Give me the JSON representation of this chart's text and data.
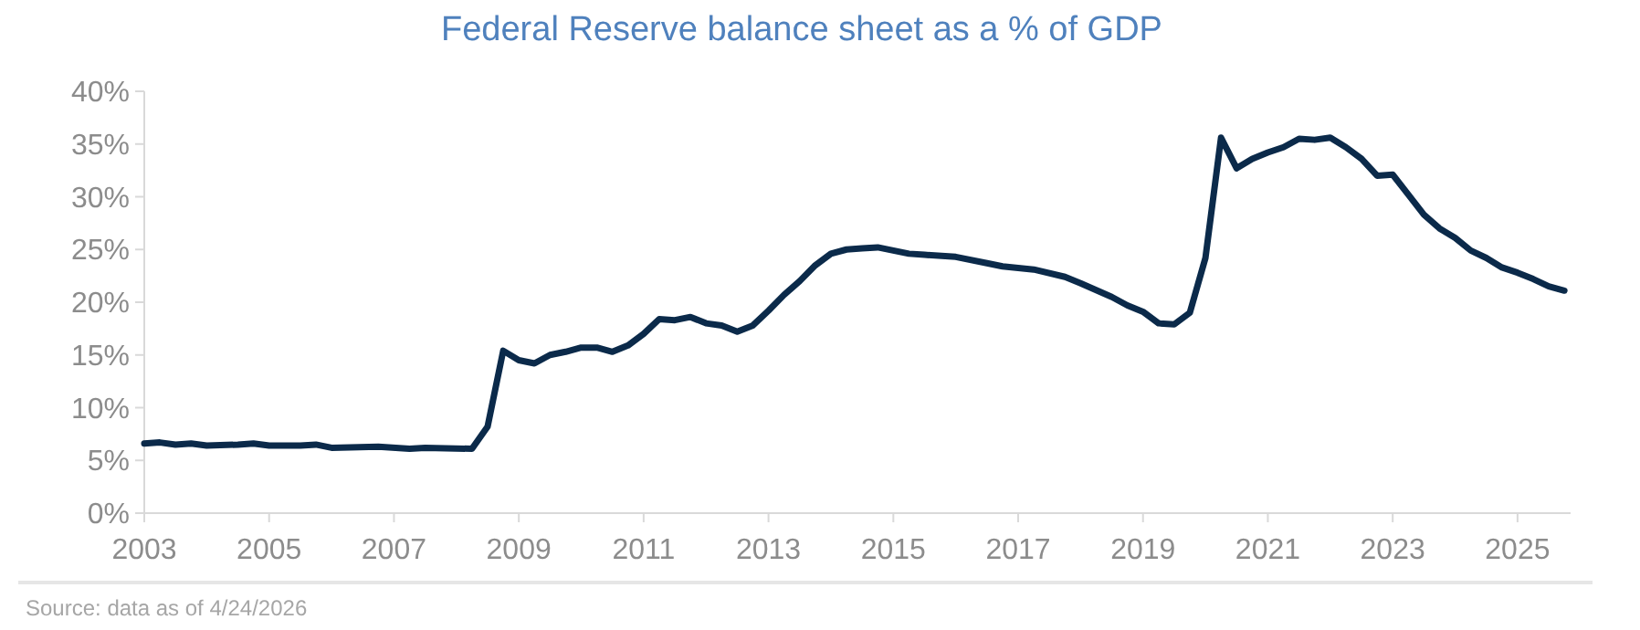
{
  "chart_data": {
    "type": "line",
    "title": "Federal Reserve balance sheet as a % of GDP",
    "annotations": [
      "Source: data as of 4/24/2026"
    ],
    "x": [
      2003,
      2003.25,
      2003.5,
      2003.75,
      2004,
      2004.5,
      2004.75,
      2005,
      2005.5,
      2005.75,
      2006,
      2006.75,
      2007.25,
      2007.5,
      2008.25,
      2008.5,
      2008.75,
      2009,
      2009.25,
      2009.5,
      2009.75,
      2010,
      2010.25,
      2010.5,
      2010.75,
      2011,
      2011.25,
      2011.5,
      2011.75,
      2012,
      2012.25,
      2012.5,
      2012.75,
      2013,
      2013.25,
      2013.5,
      2013.75,
      2014,
      2014.25,
      2014.5,
      2014.75,
      2015,
      2015.25,
      2015.5,
      2016,
      2016.5,
      2016.75,
      2017.25,
      2017.75,
      2018,
      2018.5,
      2018.75,
      2019,
      2019.25,
      2019.5,
      2019.75,
      2020,
      2020.25,
      2020.5,
      2020.75,
      2021,
      2021.25,
      2021.5,
      2021.75,
      2022,
      2022.25,
      2022.5,
      2022.75,
      2023,
      2023.25,
      2023.5,
      2023.75,
      2024,
      2024.25,
      2024.5,
      2024.75,
      2025,
      2025.25,
      2025.5,
      2025.75
    ],
    "series": [
      {
        "color": "#0b2a4a",
        "values": [
          6.6,
          6.7,
          6.5,
          6.6,
          6.4,
          6.5,
          6.6,
          6.4,
          6.4,
          6.5,
          6.2,
          6.3,
          6.1,
          6.2,
          6.1,
          8.2,
          15.4,
          14.5,
          14.2,
          15.0,
          15.3,
          15.7,
          15.7,
          15.3,
          15.9,
          17.0,
          18.4,
          18.3,
          18.6,
          18.0,
          17.8,
          17.2,
          17.8,
          19.2,
          20.7,
          22.0,
          23.5,
          24.6,
          25.0,
          25.1,
          25.2,
          24.9,
          24.6,
          24.5,
          24.3,
          23.7,
          23.4,
          23.1,
          22.4,
          21.8,
          20.5,
          19.7,
          19.1,
          18.0,
          17.9,
          19.0,
          24.2,
          35.6,
          32.7,
          33.6,
          34.2,
          34.7,
          35.5,
          35.4,
          35.6,
          34.7,
          33.6,
          32.0,
          32.1,
          30.2,
          28.3,
          27.0,
          26.1,
          24.9,
          24.2,
          23.3,
          22.8,
          22.2,
          21.5,
          21.1
        ]
      }
    ],
    "xlim": [
      2003,
      2025.85
    ],
    "xticks": [
      2003,
      2005,
      2007,
      2009,
      2011,
      2013,
      2015,
      2017,
      2019,
      2021,
      2023,
      2025
    ],
    "ylim": [
      0,
      40
    ],
    "yticks": [
      {
        "value": 0,
        "label": "0%"
      },
      {
        "value": 5,
        "label": "5%"
      },
      {
        "value": 10,
        "label": "10%"
      },
      {
        "value": 15,
        "label": "15%"
      },
      {
        "value": 20,
        "label": "20%"
      },
      {
        "value": 25,
        "label": "25%"
      },
      {
        "value": 30,
        "label": "30%"
      },
      {
        "value": 35,
        "label": "35%"
      },
      {
        "value": 40,
        "label": "40%"
      }
    ],
    "grid": false,
    "marker": "none",
    "line_style": "solid"
  }
}
